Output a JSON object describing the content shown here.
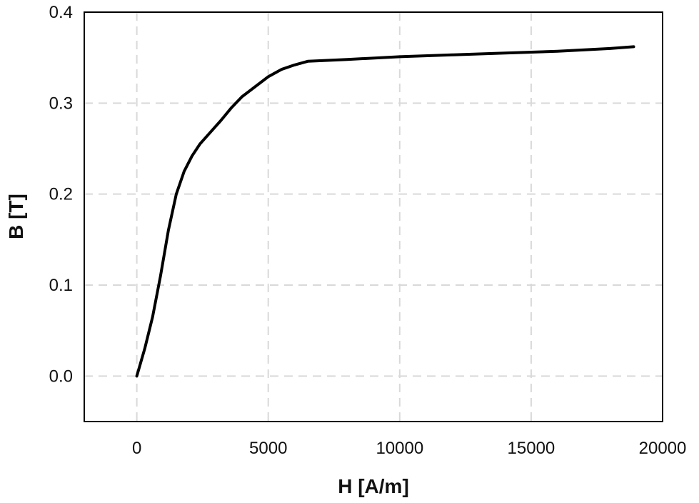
{
  "chart_data": {
    "type": "line",
    "title": "",
    "xlabel": "H [A/m]",
    "ylabel": "B [T]",
    "xlim": [
      -2000,
      20000
    ],
    "ylim": [
      -0.05,
      0.4
    ],
    "xticks": [
      0,
      5000,
      10000,
      15000,
      20000
    ],
    "yticks": [
      0.0,
      0.1,
      0.2,
      0.3,
      0.4
    ],
    "xtick_labels": [
      "0",
      "5000",
      "10000",
      "15000",
      "20000"
    ],
    "ytick_labels": [
      "0.0",
      "0.1",
      "0.2",
      "0.3",
      "0.4"
    ],
    "grid": true,
    "series": [
      {
        "color": "#000000",
        "x": [
          0,
          300,
          600,
          900,
          1200,
          1500,
          1800,
          2100,
          2400,
          2800,
          3200,
          3600,
          4000,
          4500,
          5000,
          5500,
          6000,
          6500,
          8000,
          10000,
          12000,
          14000,
          16000,
          18000,
          18900
        ],
        "y": [
          0.0,
          0.03,
          0.065,
          0.11,
          0.16,
          0.2,
          0.225,
          0.242,
          0.255,
          0.268,
          0.281,
          0.295,
          0.307,
          0.318,
          0.329,
          0.337,
          0.342,
          0.346,
          0.348,
          0.351,
          0.353,
          0.355,
          0.357,
          0.36,
          0.362
        ]
      }
    ]
  }
}
